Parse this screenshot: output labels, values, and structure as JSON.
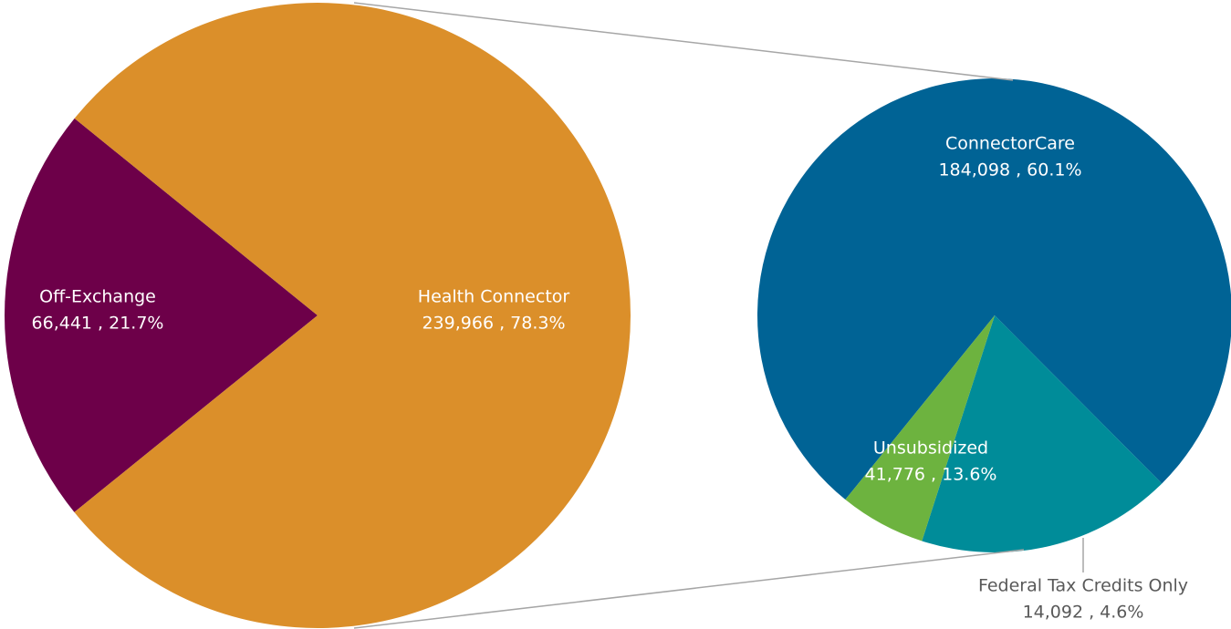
{
  "chart_data": [
    {
      "type": "pie",
      "categories": [
        "Off-Exchange",
        "Health Connector"
      ],
      "values": [
        66441,
        239966
      ],
      "value_labels": [
        "66,441 , 21.7%",
        "239,966 , 78.3%"
      ],
      "colors": [
        "#6d0049",
        "#db8f2a"
      ]
    },
    {
      "type": "pie",
      "categories": [
        "ConnectorCare",
        "Unsubsidized",
        "Federal Tax Credits Only"
      ],
      "values": [
        184098,
        41776,
        14092
      ],
      "value_labels": [
        "184,098 , 60.1%",
        "41,776 , 13.6%",
        "14,092 , 4.6%"
      ],
      "colors": [
        "#006395",
        "#008c99",
        "#6db33f"
      ]
    }
  ]
}
